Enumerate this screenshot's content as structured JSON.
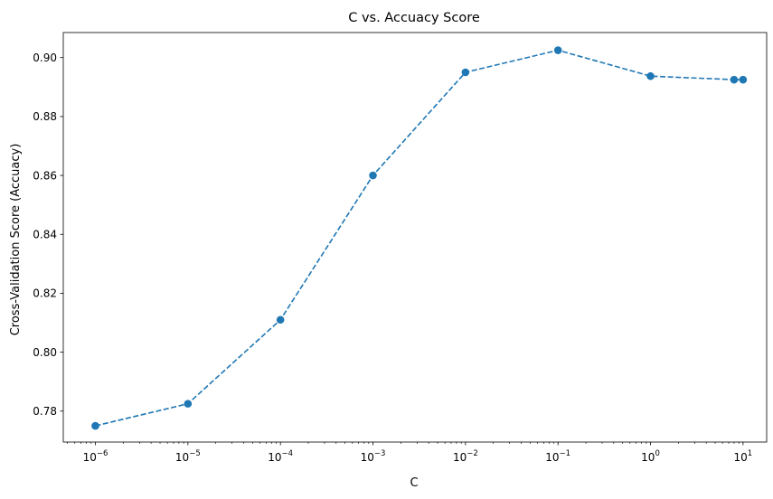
{
  "chart_data": {
    "type": "line",
    "title": "C vs. Accuacy Score",
    "xlabel": "C",
    "ylabel": "Cross-Validation Score (Accuacy)",
    "x_scale": "log",
    "xlim": [
      4.5e-07,
      18
    ],
    "ylim": [
      0.7695,
      0.9085
    ],
    "x_ticks": [
      {
        "value": 1e-06,
        "base": "10",
        "exp": "−6"
      },
      {
        "value": 1e-05,
        "base": "10",
        "exp": "−5"
      },
      {
        "value": 0.0001,
        "base": "10",
        "exp": "−4"
      },
      {
        "value": 0.001,
        "base": "10",
        "exp": "−3"
      },
      {
        "value": 0.01,
        "base": "10",
        "exp": "−2"
      },
      {
        "value": 0.1,
        "base": "10",
        "exp": "−1"
      },
      {
        "value": 1,
        "base": "10",
        "exp": "0"
      },
      {
        "value": 10,
        "base": "10",
        "exp": "1"
      }
    ],
    "y_ticks": [
      {
        "value": 0.78,
        "label": "0.78"
      },
      {
        "value": 0.8,
        "label": "0.80"
      },
      {
        "value": 0.82,
        "label": "0.82"
      },
      {
        "value": 0.84,
        "label": "0.84"
      },
      {
        "value": 0.86,
        "label": "0.86"
      },
      {
        "value": 0.88,
        "label": "0.88"
      },
      {
        "value": 0.9,
        "label": "0.90"
      }
    ],
    "grid": false,
    "line_style": "dashed",
    "marker": "circle",
    "color": "#1f77b4",
    "series": [
      {
        "x": [
          1e-06,
          1e-05,
          0.0001,
          0.001,
          0.01,
          0.1,
          1,
          8,
          10
        ],
        "y": [
          0.775,
          0.7825,
          0.811,
          0.86,
          0.895,
          0.9025,
          0.8937,
          0.8925,
          0.8925
        ]
      }
    ]
  }
}
